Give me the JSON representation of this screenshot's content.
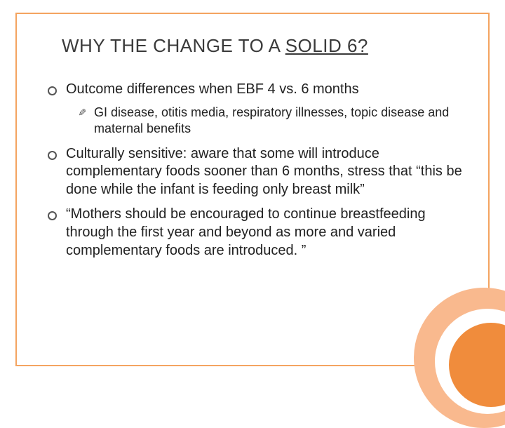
{
  "colors": {
    "accent_light": "#f9b98e",
    "accent_dark": "#f08c3c",
    "border": "#f4a460",
    "text": "#222222",
    "title_text": "#3a3a3a",
    "background": "#ffffff"
  },
  "typography": {
    "title_fontsize": 26,
    "bullet_fontsize": 20,
    "sub_fontsize": 18,
    "font_family": "Arial"
  },
  "title": {
    "pre": "WHY THE CHANGE TO A ",
    "underlined": "SOLID 6?"
  },
  "bullets": [
    {
      "text": "Outcome differences when EBF 4 vs. 6 months",
      "sub": [
        "GI disease, otitis media, respiratory illnesses, topic disease and maternal benefits"
      ]
    },
    {
      "text": "Culturally sensitive: aware that some will introduce complementary foods sooner than 6 months, stress that “this be done while the infant is feeding only breast milk”",
      "sub": []
    },
    {
      "text": "“Mothers should be encouraged to continue breastfeeding through the first year and beyond as more and varied complementary foods are introduced. ”",
      "sub": []
    }
  ]
}
